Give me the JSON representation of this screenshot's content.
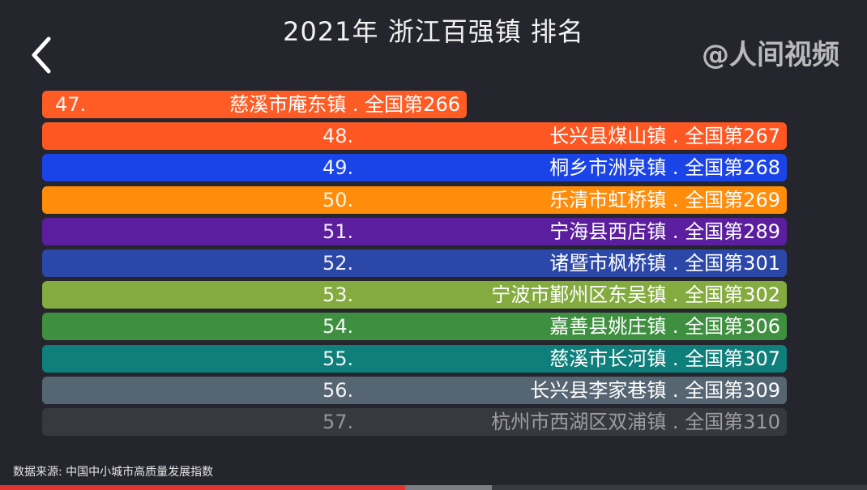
{
  "header": {
    "title": "2021年 浙江百强镇 排名",
    "watermark": "@人间视频"
  },
  "source_note": "数据来源: 中国中小城市高质量发展指数",
  "player": {
    "progress": 0.467,
    "buffered": 0.567,
    "colors": {
      "played": "#e3342f",
      "buffered": "#7d7e85",
      "track": "#3a3b42"
    }
  },
  "icons": {
    "back": "chevron-left-icon"
  },
  "chart_data": {
    "type": "bar",
    "orientation": "horizontal",
    "title": "2021年 浙江百强镇 排名",
    "categories": [
      "慈溪市庵东镇",
      "长兴县煤山镇",
      "桐乡市洲泉镇",
      "乐清市虹桥镇",
      "宁海县西店镇",
      "诸暨市枫桥镇",
      "宁波市鄞州区东吴镇",
      "嘉善县姚庄镇",
      "慈溪市长河镇",
      "长兴县李家巷镇",
      "杭州市西湖区双浦镇"
    ],
    "items": [
      {
        "rank": "47.",
        "label": "慈溪市庵东镇 . 全国第266",
        "national_rank": 266,
        "value": 0.57,
        "color": "#ff5b24",
        "opacity": 1
      },
      {
        "rank": "48.",
        "label": "长兴县煤山镇 . 全国第267",
        "national_rank": 267,
        "value": 1.0,
        "color": "#ff5722",
        "opacity": 1
      },
      {
        "rank": "49.",
        "label": "桐乡市洲泉镇 . 全国第268",
        "national_rank": 268,
        "value": 1.0,
        "color": "#1a43e8",
        "opacity": 1
      },
      {
        "rank": "50.",
        "label": "乐清市虹桥镇 . 全国第269",
        "national_rank": 269,
        "value": 1.0,
        "color": "#ff8c0a",
        "opacity": 1
      },
      {
        "rank": "51.",
        "label": "宁海县西店镇 . 全国第289",
        "national_rank": 289,
        "value": 1.0,
        "color": "#5a1e9e",
        "opacity": 1
      },
      {
        "rank": "52.",
        "label": "诸暨市枫桥镇 . 全国第301",
        "national_rank": 301,
        "value": 1.0,
        "color": "#2b47a8",
        "opacity": 1
      },
      {
        "rank": "53.",
        "label": "宁波市鄞州区东吴镇 . 全国第302",
        "national_rank": 302,
        "value": 1.0,
        "color": "#84ab3f",
        "opacity": 1
      },
      {
        "rank": "54.",
        "label": "嘉善县姚庄镇 . 全国第306",
        "national_rank": 306,
        "value": 1.0,
        "color": "#3e8f3f",
        "opacity": 1
      },
      {
        "rank": "55.",
        "label": "慈溪市长河镇 . 全国第307",
        "national_rank": 307,
        "value": 1.0,
        "color": "#0e7f7a",
        "opacity": 1
      },
      {
        "rank": "56.",
        "label": "长兴县李家巷镇 . 全国第309",
        "national_rank": 309,
        "value": 1.0,
        "color": "#566572",
        "opacity": 1
      },
      {
        "rank": "57.",
        "label": "杭州市西湖区双浦镇 . 全国第310",
        "national_rank": 310,
        "value": 1.0,
        "color": "#474850",
        "opacity": 0.55
      }
    ]
  }
}
